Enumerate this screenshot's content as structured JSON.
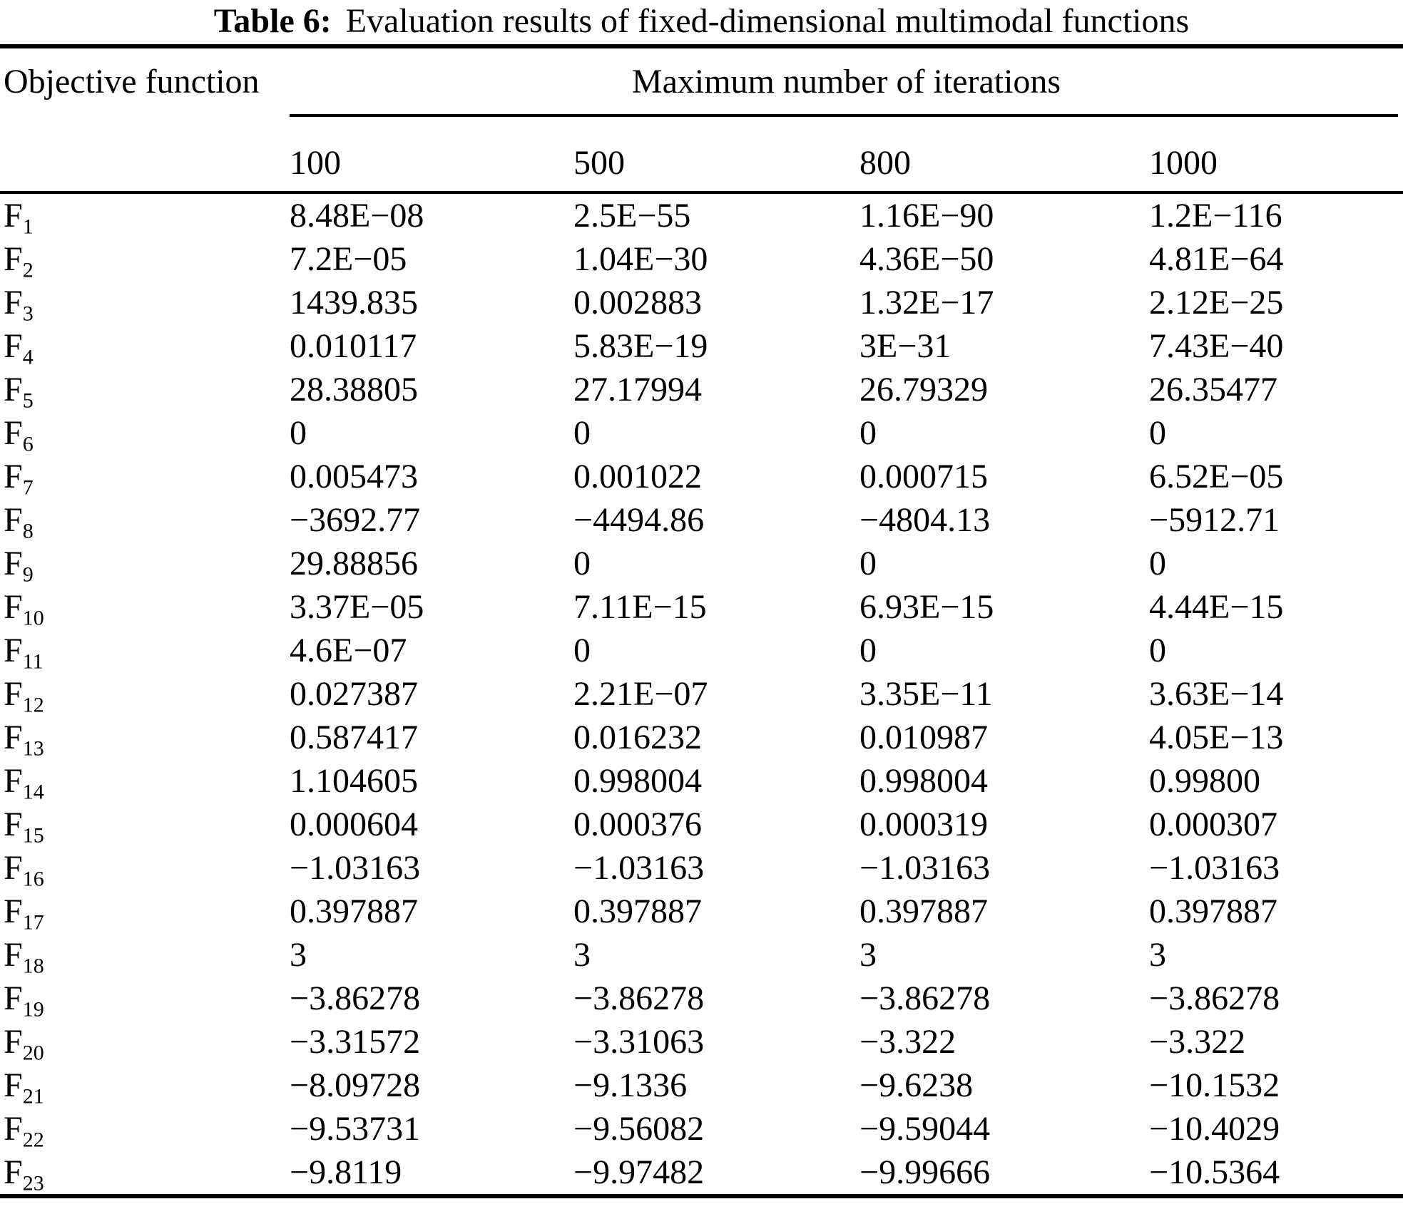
{
  "colors": {
    "text": "#000000",
    "background": "#ffffff",
    "rule": "#000000"
  },
  "table": {
    "title_label": "Table 6:",
    "title_text": "Evaluation results of fixed-dimensional multimodal functions",
    "row_header": "Objective function",
    "col_group_header": "Maximum number of iterations",
    "columns": [
      "100",
      "500",
      "800",
      "1000"
    ],
    "rows": [
      {
        "name": "F",
        "sub": "1",
        "values": [
          "8.48E−08",
          "2.5E−55",
          "1.16E−90",
          "1.2E−116"
        ]
      },
      {
        "name": "F",
        "sub": "2",
        "values": [
          "7.2E−05",
          "1.04E−30",
          "4.36E−50",
          "4.81E−64"
        ]
      },
      {
        "name": "F",
        "sub": "3",
        "values": [
          "1439.835",
          "0.002883",
          "1.32E−17",
          "2.12E−25"
        ]
      },
      {
        "name": "F",
        "sub": "4",
        "values": [
          "0.010117",
          "5.83E−19",
          "3E−31",
          "7.43E−40"
        ]
      },
      {
        "name": "F",
        "sub": "5",
        "values": [
          "28.38805",
          "27.17994",
          "26.79329",
          "26.35477"
        ]
      },
      {
        "name": "F",
        "sub": "6",
        "values": [
          "0",
          "0",
          "0",
          "0"
        ]
      },
      {
        "name": "F",
        "sub": "7",
        "values": [
          "0.005473",
          "0.001022",
          "0.000715",
          "6.52E−05"
        ]
      },
      {
        "name": "F",
        "sub": "8",
        "values": [
          "−3692.77",
          "−4494.86",
          "−4804.13",
          "−5912.71"
        ]
      },
      {
        "name": "F",
        "sub": "9",
        "values": [
          "29.88856",
          "0",
          "0",
          "0"
        ]
      },
      {
        "name": "F",
        "sub": "10",
        "values": [
          "3.37E−05",
          "7.11E−15",
          "6.93E−15",
          "4.44E−15"
        ]
      },
      {
        "name": "F",
        "sub": "11",
        "values": [
          "4.6E−07",
          "0",
          "0",
          "0"
        ]
      },
      {
        "name": "F",
        "sub": "12",
        "values": [
          "0.027387",
          "2.21E−07",
          "3.35E−11",
          "3.63E−14"
        ]
      },
      {
        "name": "F",
        "sub": "13",
        "values": [
          "0.587417",
          "0.016232",
          "0.010987",
          "4.05E−13"
        ]
      },
      {
        "name": "F",
        "sub": "14",
        "values": [
          "1.104605",
          "0.998004",
          "0.998004",
          "0.99800"
        ]
      },
      {
        "name": "F",
        "sub": "15",
        "values": [
          "0.000604",
          "0.000376",
          "0.000319",
          "0.000307"
        ]
      },
      {
        "name": "F",
        "sub": "16",
        "values": [
          "−1.03163",
          "−1.03163",
          "−1.03163",
          "−1.03163"
        ]
      },
      {
        "name": "F",
        "sub": "17",
        "values": [
          "0.397887",
          "0.397887",
          "0.397887",
          "0.397887"
        ]
      },
      {
        "name": "F",
        "sub": "18",
        "values": [
          "3",
          "3",
          "3",
          "3"
        ]
      },
      {
        "name": "F",
        "sub": "19",
        "values": [
          "−3.86278",
          "−3.86278",
          "−3.86278",
          "−3.86278"
        ]
      },
      {
        "name": "F",
        "sub": "20",
        "values": [
          "−3.31572",
          "−3.31063",
          "−3.322",
          "−3.322"
        ]
      },
      {
        "name": "F",
        "sub": "21",
        "values": [
          "−8.09728",
          "−9.1336",
          "−9.6238",
          "−10.1532"
        ]
      },
      {
        "name": "F",
        "sub": "22",
        "values": [
          "−9.53731",
          "−9.56082",
          "−9.59044",
          "−10.4029"
        ]
      },
      {
        "name": "F",
        "sub": "23",
        "values": [
          "−9.8119",
          "−9.97482",
          "−9.99666",
          "−10.5364"
        ]
      }
    ]
  }
}
